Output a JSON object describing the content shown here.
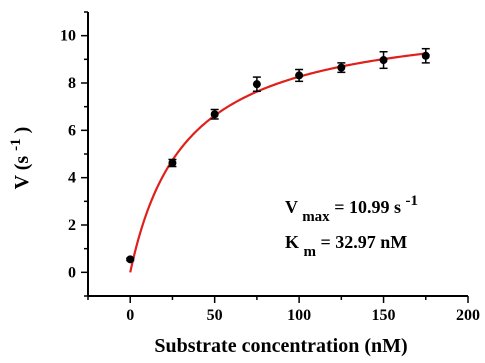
{
  "chart_data": {
    "type": "scatter",
    "xlabel": "Substrate concentration (nM)",
    "ylabel_main": "V (s",
    "ylabel_exp": "-1",
    "ylabel_close": ")",
    "xlim": [
      -25,
      200
    ],
    "ylim": [
      -1,
      11
    ],
    "x_ticks": [
      0,
      50,
      100,
      150,
      200
    ],
    "y_ticks": [
      0,
      2,
      4,
      6,
      8,
      10
    ],
    "series": [
      {
        "x": [
          0,
          25,
          50,
          75,
          100,
          125,
          150,
          175
        ],
        "y": [
          0.55,
          4.62,
          6.68,
          7.95,
          8.32,
          8.65,
          8.97,
          9.15
        ],
        "error": [
          0.05,
          0.15,
          0.2,
          0.3,
          0.25,
          0.2,
          0.35,
          0.3
        ],
        "color": "#000000"
      }
    ],
    "fit": {
      "model": "michaelis-menten",
      "vmax": 10.99,
      "km": 32.97,
      "color": "#e0201b"
    },
    "annotations": {
      "vmax_label": "V",
      "vmax_sub": "max",
      "vmax_value": " = 10.99 s",
      "vmax_unit_exp": "-1",
      "km_label": "K",
      "km_sub": "m",
      "km_value": " = 32.97 nM"
    }
  }
}
